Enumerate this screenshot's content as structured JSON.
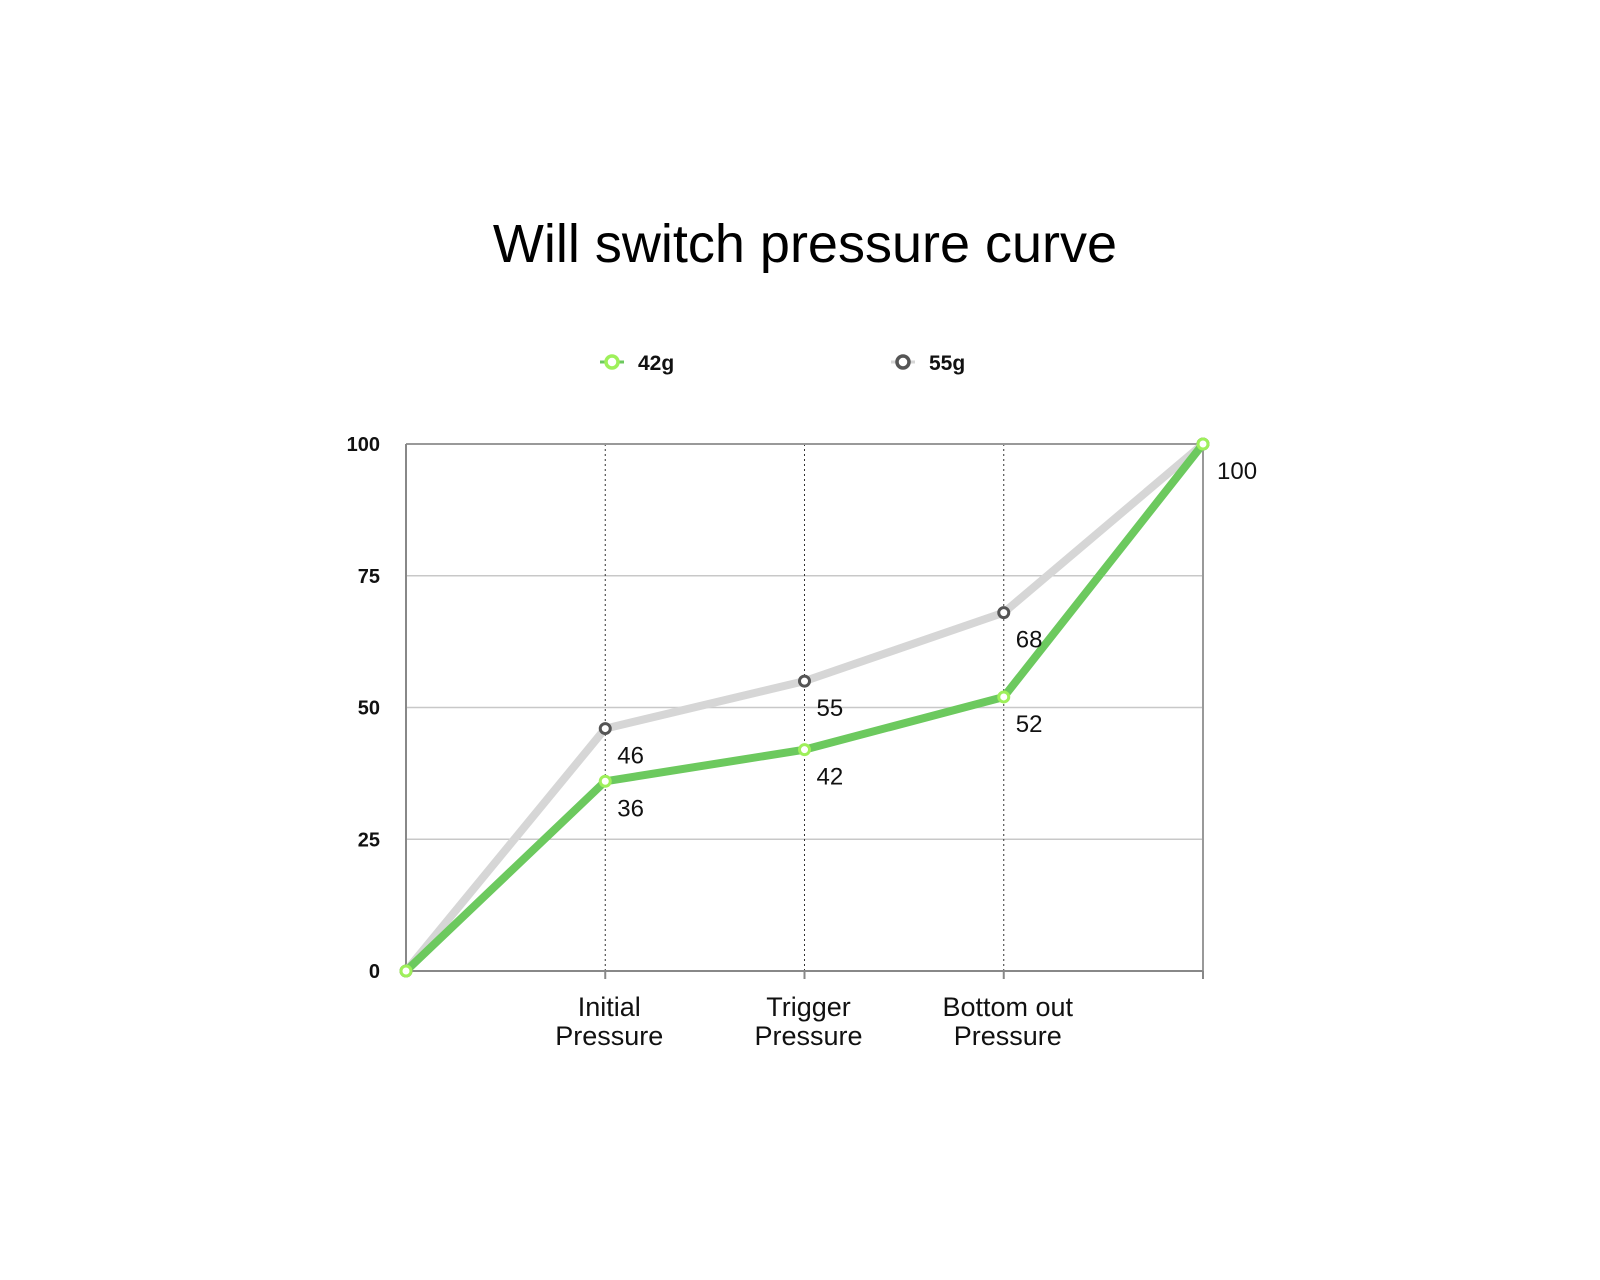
{
  "chart_data": {
    "type": "line",
    "title": "Will switch pressure curve",
    "xlabel": "",
    "ylabel": "",
    "categories": [
      "",
      "Initial Pressure",
      "Trigger Pressure",
      "Bottom out Pressure",
      ""
    ],
    "category_lines": [
      [
        "Initial",
        "Pressure"
      ],
      [
        "Trigger",
        "Pressure"
      ],
      [
        "Bottom out",
        "Pressure"
      ]
    ],
    "ylim": [
      0,
      100
    ],
    "yticks": [
      0,
      25,
      50,
      75,
      100
    ],
    "grid": true,
    "legend_position": "top",
    "series": [
      {
        "name": "55g",
        "values": [
          0,
          46,
          55,
          68,
          100
        ],
        "color": "#d6d6d6",
        "marker_color": "#555555",
        "labels": [
          "",
          "46",
          "55",
          "68",
          ""
        ]
      },
      {
        "name": "42g",
        "values": [
          0,
          36,
          42,
          52,
          100
        ],
        "color": "#6cc95e",
        "marker_color": "#9ef05a",
        "labels": [
          "",
          "36",
          "42",
          "52",
          "100"
        ]
      }
    ]
  }
}
